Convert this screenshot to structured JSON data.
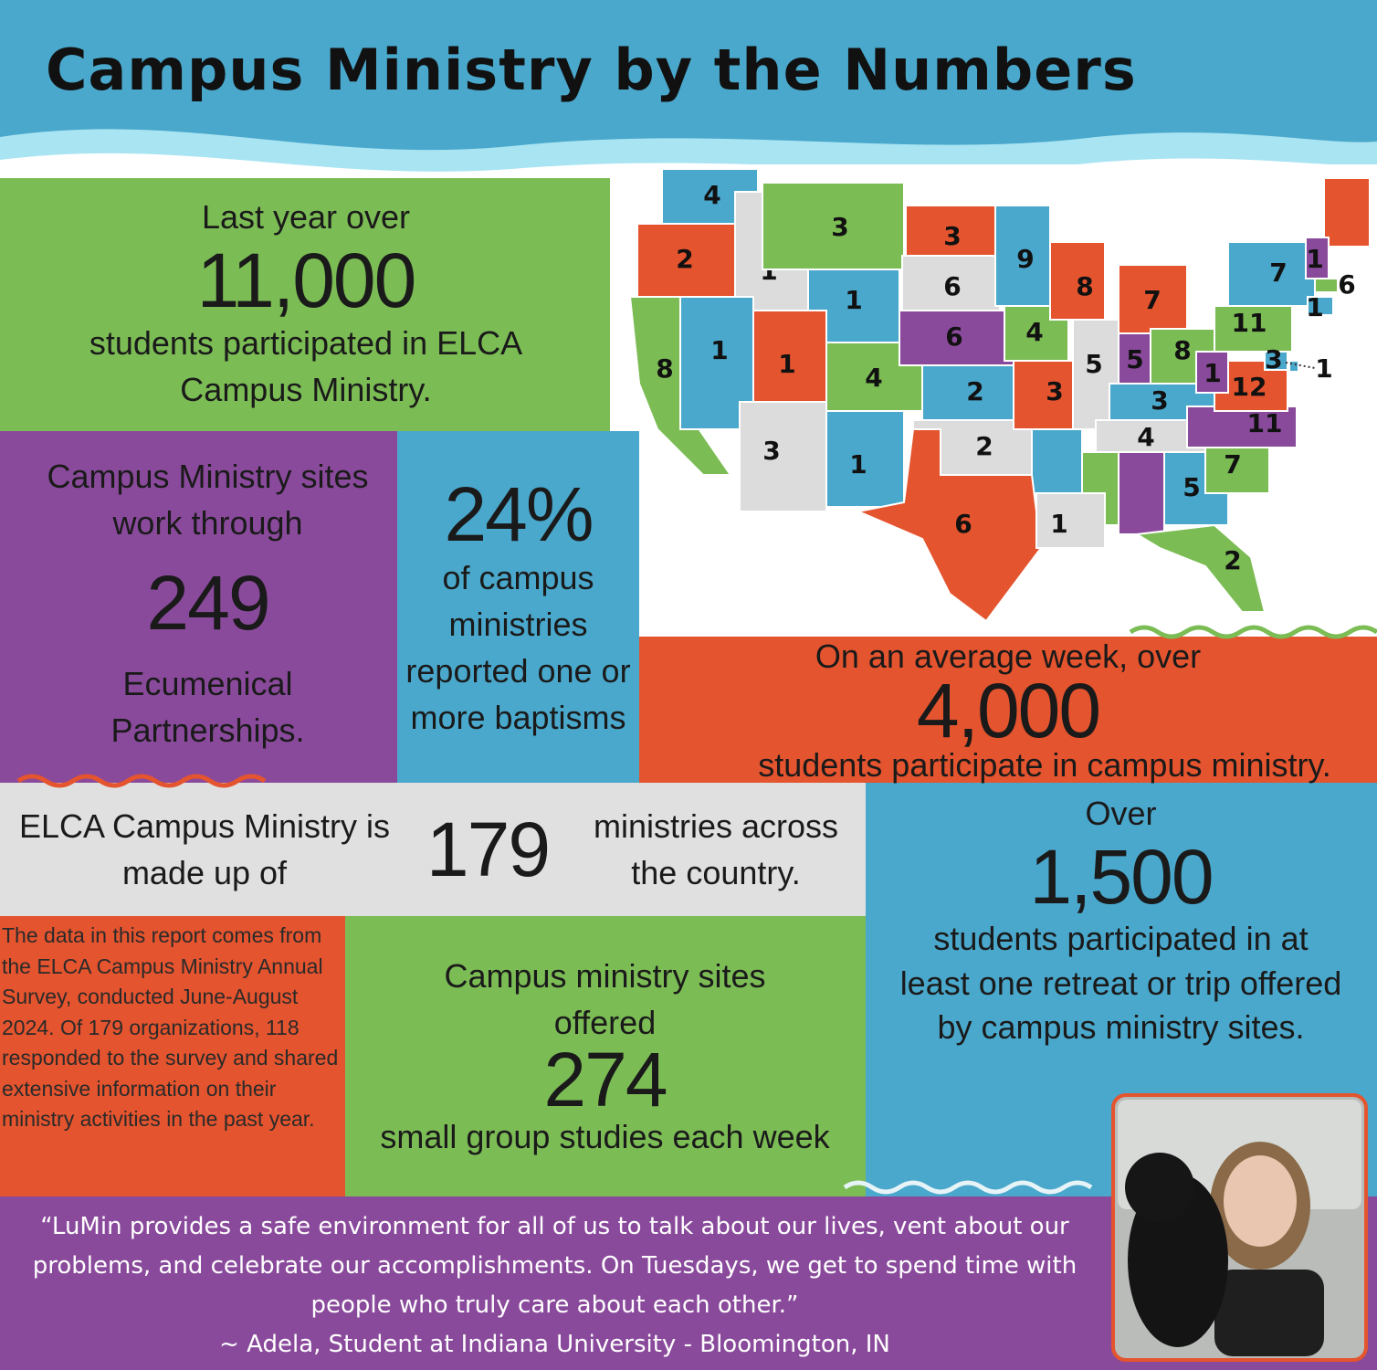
{
  "header": {
    "title": "Campus Ministry by the Numbers"
  },
  "participation": {
    "intro": "Last year over",
    "number": "11,000",
    "text": "students participated in ELCA Campus Ministry."
  },
  "partnerships": {
    "intro": "Campus Ministry sites work through",
    "number": "249",
    "text": "Ecumenical Partnerships."
  },
  "baptisms": {
    "number": "24%",
    "text": "of campus ministries reported one or more baptisms"
  },
  "weekly": {
    "intro": "On an average week, over",
    "number": "4,000",
    "text": "students participate in campus ministry."
  },
  "ministries": {
    "intro": "ELCA Campus Ministry is made up of",
    "number": "179",
    "text": "ministries across the country."
  },
  "retreats": {
    "intro": "Over",
    "number": "1,500",
    "text": "students participated in at least one retreat or trip offered by campus ministry sites."
  },
  "source": {
    "text": "The data in this report comes from the ELCA Campus Ministry Annual Survey, conducted June-August 2024. Of 179 organizations, 118 responded to the survey and shared extensive information on their ministry activities in the past year."
  },
  "small_groups": {
    "intro": "Campus ministry sites offered",
    "number": "274",
    "text": "small group studies each week"
  },
  "quote": {
    "text": "“LuMin provides a safe environment for all of us to talk about our lives, vent about our problems, and celebrate our accomplishments. On Tuesdays, we get to spend time with people who truly care about each other.”",
    "attribution": "~ Adela, Student at Indiana University - Bloomington, IN"
  },
  "map": {
    "labels": [
      "4",
      "2",
      "8",
      "1",
      "1",
      "3",
      "1",
      "1",
      "3",
      "4",
      "1",
      "3",
      "6",
      "6",
      "2",
      "2",
      "6",
      "9",
      "4",
      "3",
      "1",
      "8",
      "5",
      "7",
      "5",
      "8",
      "3",
      "4",
      "5",
      "2",
      "7",
      "11",
      "12",
      "1",
      "11",
      "7",
      "1",
      "6",
      "1",
      "3",
      "1"
    ]
  }
}
